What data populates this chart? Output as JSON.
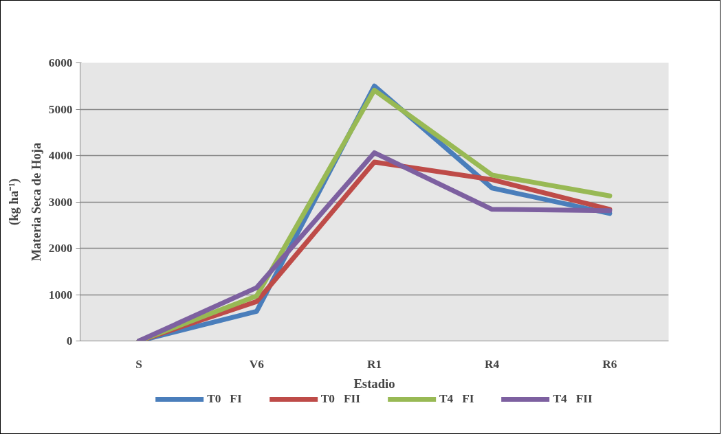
{
  "chart_data": {
    "type": "line",
    "xlabel": "Estadio",
    "ylabel": "Materia Seca de Hoja\n(kg ha⁻¹)",
    "categories": [
      "S",
      "V6",
      "R1",
      "R4",
      "R6"
    ],
    "series": [
      {
        "name": "T0   FI",
        "color": "#4a7ebb",
        "values": [
          0,
          640,
          5500,
          3300,
          2750
        ]
      },
      {
        "name": "T0   FII",
        "color": "#be4b48",
        "values": [
          0,
          850,
          3860,
          3480,
          2840
        ]
      },
      {
        "name": "T4   FI",
        "color": "#98b954",
        "values": [
          0,
          970,
          5410,
          3580,
          3130
        ]
      },
      {
        "name": "T4   FII",
        "color": "#7d60a0",
        "values": [
          0,
          1150,
          4060,
          2840,
          2810
        ]
      }
    ],
    "ylim": [
      0,
      6000
    ],
    "yticks": [
      0,
      1000,
      2000,
      3000,
      4000,
      5000,
      6000
    ],
    "grid": "y",
    "legend": "bottom",
    "marker": "none",
    "line_style": "solid"
  }
}
